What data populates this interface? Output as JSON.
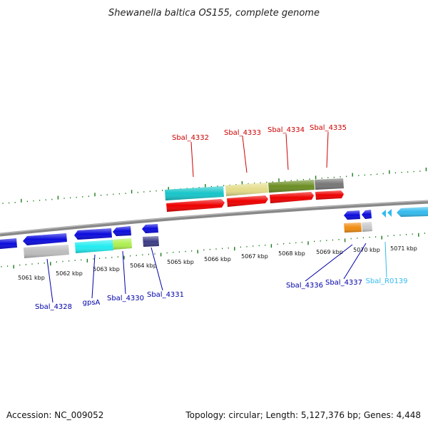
{
  "title": "Shewanella baltica OS155, complete genome",
  "footer": {
    "accession": "Accession: NC_009052",
    "summary": "Topology: circular; Length: 5,127,376 bp; Genes: 4,448"
  },
  "colors": {
    "forward_label": "#cc0000",
    "reverse_label": "#0000aa",
    "rna_label": "#33bbee",
    "tick": "#1a7a1a",
    "backbone": "#808080"
  },
  "ticks": [
    "5061 kbp",
    "5062 kbp",
    "5063 kbp",
    "5064 kbp",
    "5065 kbp",
    "5066 kbp",
    "5067 kbp",
    "5068 kbp",
    "5069 kbp",
    "5070 kbp",
    "5071 kbp"
  ],
  "labels": {
    "top": [
      "Sbal_4332",
      "Sbal_4333",
      "Sbal_4334",
      "Sbal_4335"
    ],
    "bottom": [
      "Sbal_4328",
      "gpsA",
      "Sbal_4330",
      "Sbal_4331",
      "Sbal_4336",
      "Sbal_4337",
      "Sbal_R0139"
    ]
  }
}
